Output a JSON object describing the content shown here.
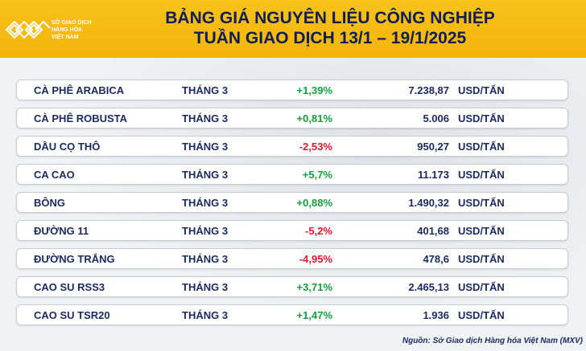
{
  "header": {
    "logo_lines": [
      "SỞ GIAO DỊCH",
      "HÀNG HÓA",
      "VIỆT NAM"
    ],
    "title_line1": "BẢNG GIÁ NGUYÊN LIỆU CÔNG NGHIỆP",
    "title_line2": "TUẦN GIAO DỊCH 13/1 – 19/1/2025"
  },
  "colors": {
    "header_bg": "#f5b90d",
    "title": "#0f1f55",
    "up": "#14a03c",
    "down": "#e0192e"
  },
  "rows": [
    {
      "name": "CÀ PHÊ ARABICA",
      "month": "THÁNG 3",
      "change": "+1,39%",
      "direction": "up",
      "price": "7.238,87",
      "unit": "USD/TẤN"
    },
    {
      "name": "CÀ PHÊ ROBUSTA",
      "month": "THÁNG 3",
      "change": "+0,81%",
      "direction": "up",
      "price": "5.006",
      "unit": "USD/TẤN"
    },
    {
      "name": "DẦU CỌ THÔ",
      "month": "THÁNG 3",
      "change": "-2,53%",
      "direction": "down",
      "price": "950,27",
      "unit": "USD/TẤN"
    },
    {
      "name": "CA CAO",
      "month": "THÁNG 3",
      "change": "+5,7%",
      "direction": "up",
      "price": "11.173",
      "unit": "USD/TẤN"
    },
    {
      "name": "BÔNG",
      "month": "THÁNG 3",
      "change": "+0,88%",
      "direction": "up",
      "price": "1.490,32",
      "unit": "USD/TẤN"
    },
    {
      "name": "ĐƯỜNG 11",
      "month": "THÁNG 3",
      "change": "-5,2%",
      "direction": "down",
      "price": "401,68",
      "unit": "USD/TẤN"
    },
    {
      "name": "ĐƯỜNG TRẮNG",
      "month": "THÁNG 3",
      "change": "-4,95%",
      "direction": "down",
      "price": "478,6",
      "unit": "USD/TẤN"
    },
    {
      "name": "CAO SU RSS3",
      "month": "THÁNG 3",
      "change": "+3,71%",
      "direction": "up",
      "price": "2.465,13",
      "unit": "USD/TẤN"
    },
    {
      "name": "CAO SU TSR20",
      "month": "THÁNG 3",
      "change": "+1,47%",
      "direction": "up",
      "price": "1.936",
      "unit": "USD/TẤN"
    }
  ],
  "footer": {
    "source": "Nguồn: Sở Giao dịch Hàng hóa Việt Nam (MXV)"
  }
}
